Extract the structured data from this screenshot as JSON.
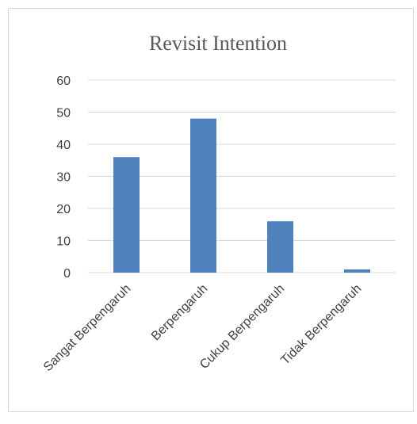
{
  "chart_data": {
    "type": "bar",
    "title": "Revisit Intention",
    "categories": [
      "Sangat Berpengaruh",
      "Berpengaruh",
      "Cukup Berpengaruh",
      "Tidak Berpengaruh"
    ],
    "values": [
      36,
      48,
      16,
      1
    ],
    "ylim": [
      0,
      60
    ],
    "yticks": [
      0,
      10,
      20,
      30,
      40,
      50,
      60
    ],
    "grid": true,
    "legend": "none",
    "bar_color": "#4f81bd",
    "grid_color": "#d9d9d9"
  }
}
